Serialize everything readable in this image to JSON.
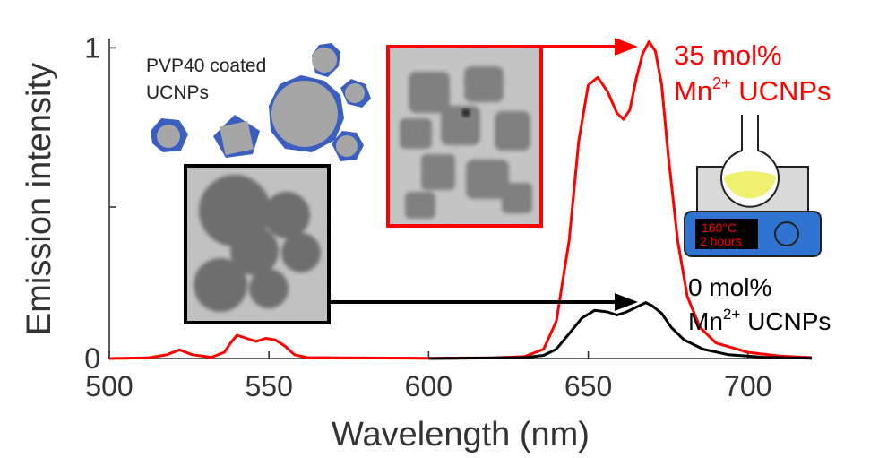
{
  "chart_data": {
    "type": "line",
    "title": "",
    "xlabel": "Wavelength (nm)",
    "ylabel": "Emission intensity",
    "xlim": [
      500,
      720
    ],
    "ylim": [
      0,
      1.03
    ],
    "x_ticks": [
      "500",
      "550",
      "600",
      "650",
      "700"
    ],
    "y_ticks": [
      "0",
      "1"
    ],
    "grid": false,
    "legend": "none",
    "series": [
      {
        "color": "#ff0000",
        "points": [
          [
            500,
            0
          ],
          [
            512,
            0.002
          ],
          [
            518,
            0.012
          ],
          [
            522,
            0.028
          ],
          [
            526,
            0.012
          ],
          [
            532,
            0.004
          ],
          [
            536,
            0.02
          ],
          [
            538,
            0.05
          ],
          [
            540,
            0.075
          ],
          [
            543,
            0.065
          ],
          [
            546,
            0.055
          ],
          [
            549,
            0.065
          ],
          [
            552,
            0.06
          ],
          [
            555,
            0.04
          ],
          [
            558,
            0.012
          ],
          [
            562,
            0.003
          ],
          [
            575,
            0.002
          ],
          [
            600,
            0.001
          ],
          [
            620,
            0.002
          ],
          [
            630,
            0.006
          ],
          [
            636,
            0.03
          ],
          [
            640,
            0.12
          ],
          [
            644,
            0.38
          ],
          [
            647,
            0.7
          ],
          [
            650,
            0.88
          ],
          [
            653,
            0.905
          ],
          [
            656,
            0.86
          ],
          [
            659,
            0.79
          ],
          [
            661,
            0.77
          ],
          [
            663,
            0.8
          ],
          [
            665,
            0.9
          ],
          [
            667,
            0.98
          ],
          [
            669,
            1.02
          ],
          [
            671,
            0.99
          ],
          [
            673,
            0.88
          ],
          [
            675,
            0.66
          ],
          [
            678,
            0.38
          ],
          [
            681,
            0.2
          ],
          [
            685,
            0.1
          ],
          [
            690,
            0.05
          ],
          [
            700,
            0.02
          ],
          [
            710,
            0.008
          ],
          [
            720,
            0.003
          ]
        ]
      },
      {
        "color": "#000000",
        "points": [
          [
            600,
            0
          ],
          [
            630,
            0.003
          ],
          [
            636,
            0.01
          ],
          [
            640,
            0.03
          ],
          [
            644,
            0.08
          ],
          [
            648,
            0.13
          ],
          [
            652,
            0.155
          ],
          [
            656,
            0.15
          ],
          [
            659,
            0.14
          ],
          [
            662,
            0.15
          ],
          [
            665,
            0.165
          ],
          [
            668,
            0.18
          ],
          [
            670,
            0.17
          ],
          [
            673,
            0.145
          ],
          [
            676,
            0.1
          ],
          [
            680,
            0.06
          ],
          [
            686,
            0.03
          ],
          [
            694,
            0.012
          ],
          [
            705,
            0.004
          ],
          [
            720,
            0.001
          ]
        ]
      }
    ],
    "annotations": {
      "pvp_line1": "PVP40 coated",
      "pvp_line2": "UCNPs",
      "label_35_line1": "35 mol%",
      "label_35_mn": "Mn",
      "label_35_sup": "2+",
      "label_35_rest": " UCNPs",
      "label_0_line1": "0 mol%",
      "label_0_mn": "Mn",
      "label_0_sup": "2+",
      "label_0_rest": " UCNPs",
      "hotplate_temp": "160°C",
      "hotplate_time": "2 hours"
    },
    "colors": {
      "red": "#ff0000",
      "black": "#000000",
      "axis": "#333333",
      "particle_gray": "#a6a6a6",
      "coating_blue": "#3b5fc0",
      "solution_yellow": "#f0f070",
      "hotplate_blue": "#2f74d0"
    }
  }
}
